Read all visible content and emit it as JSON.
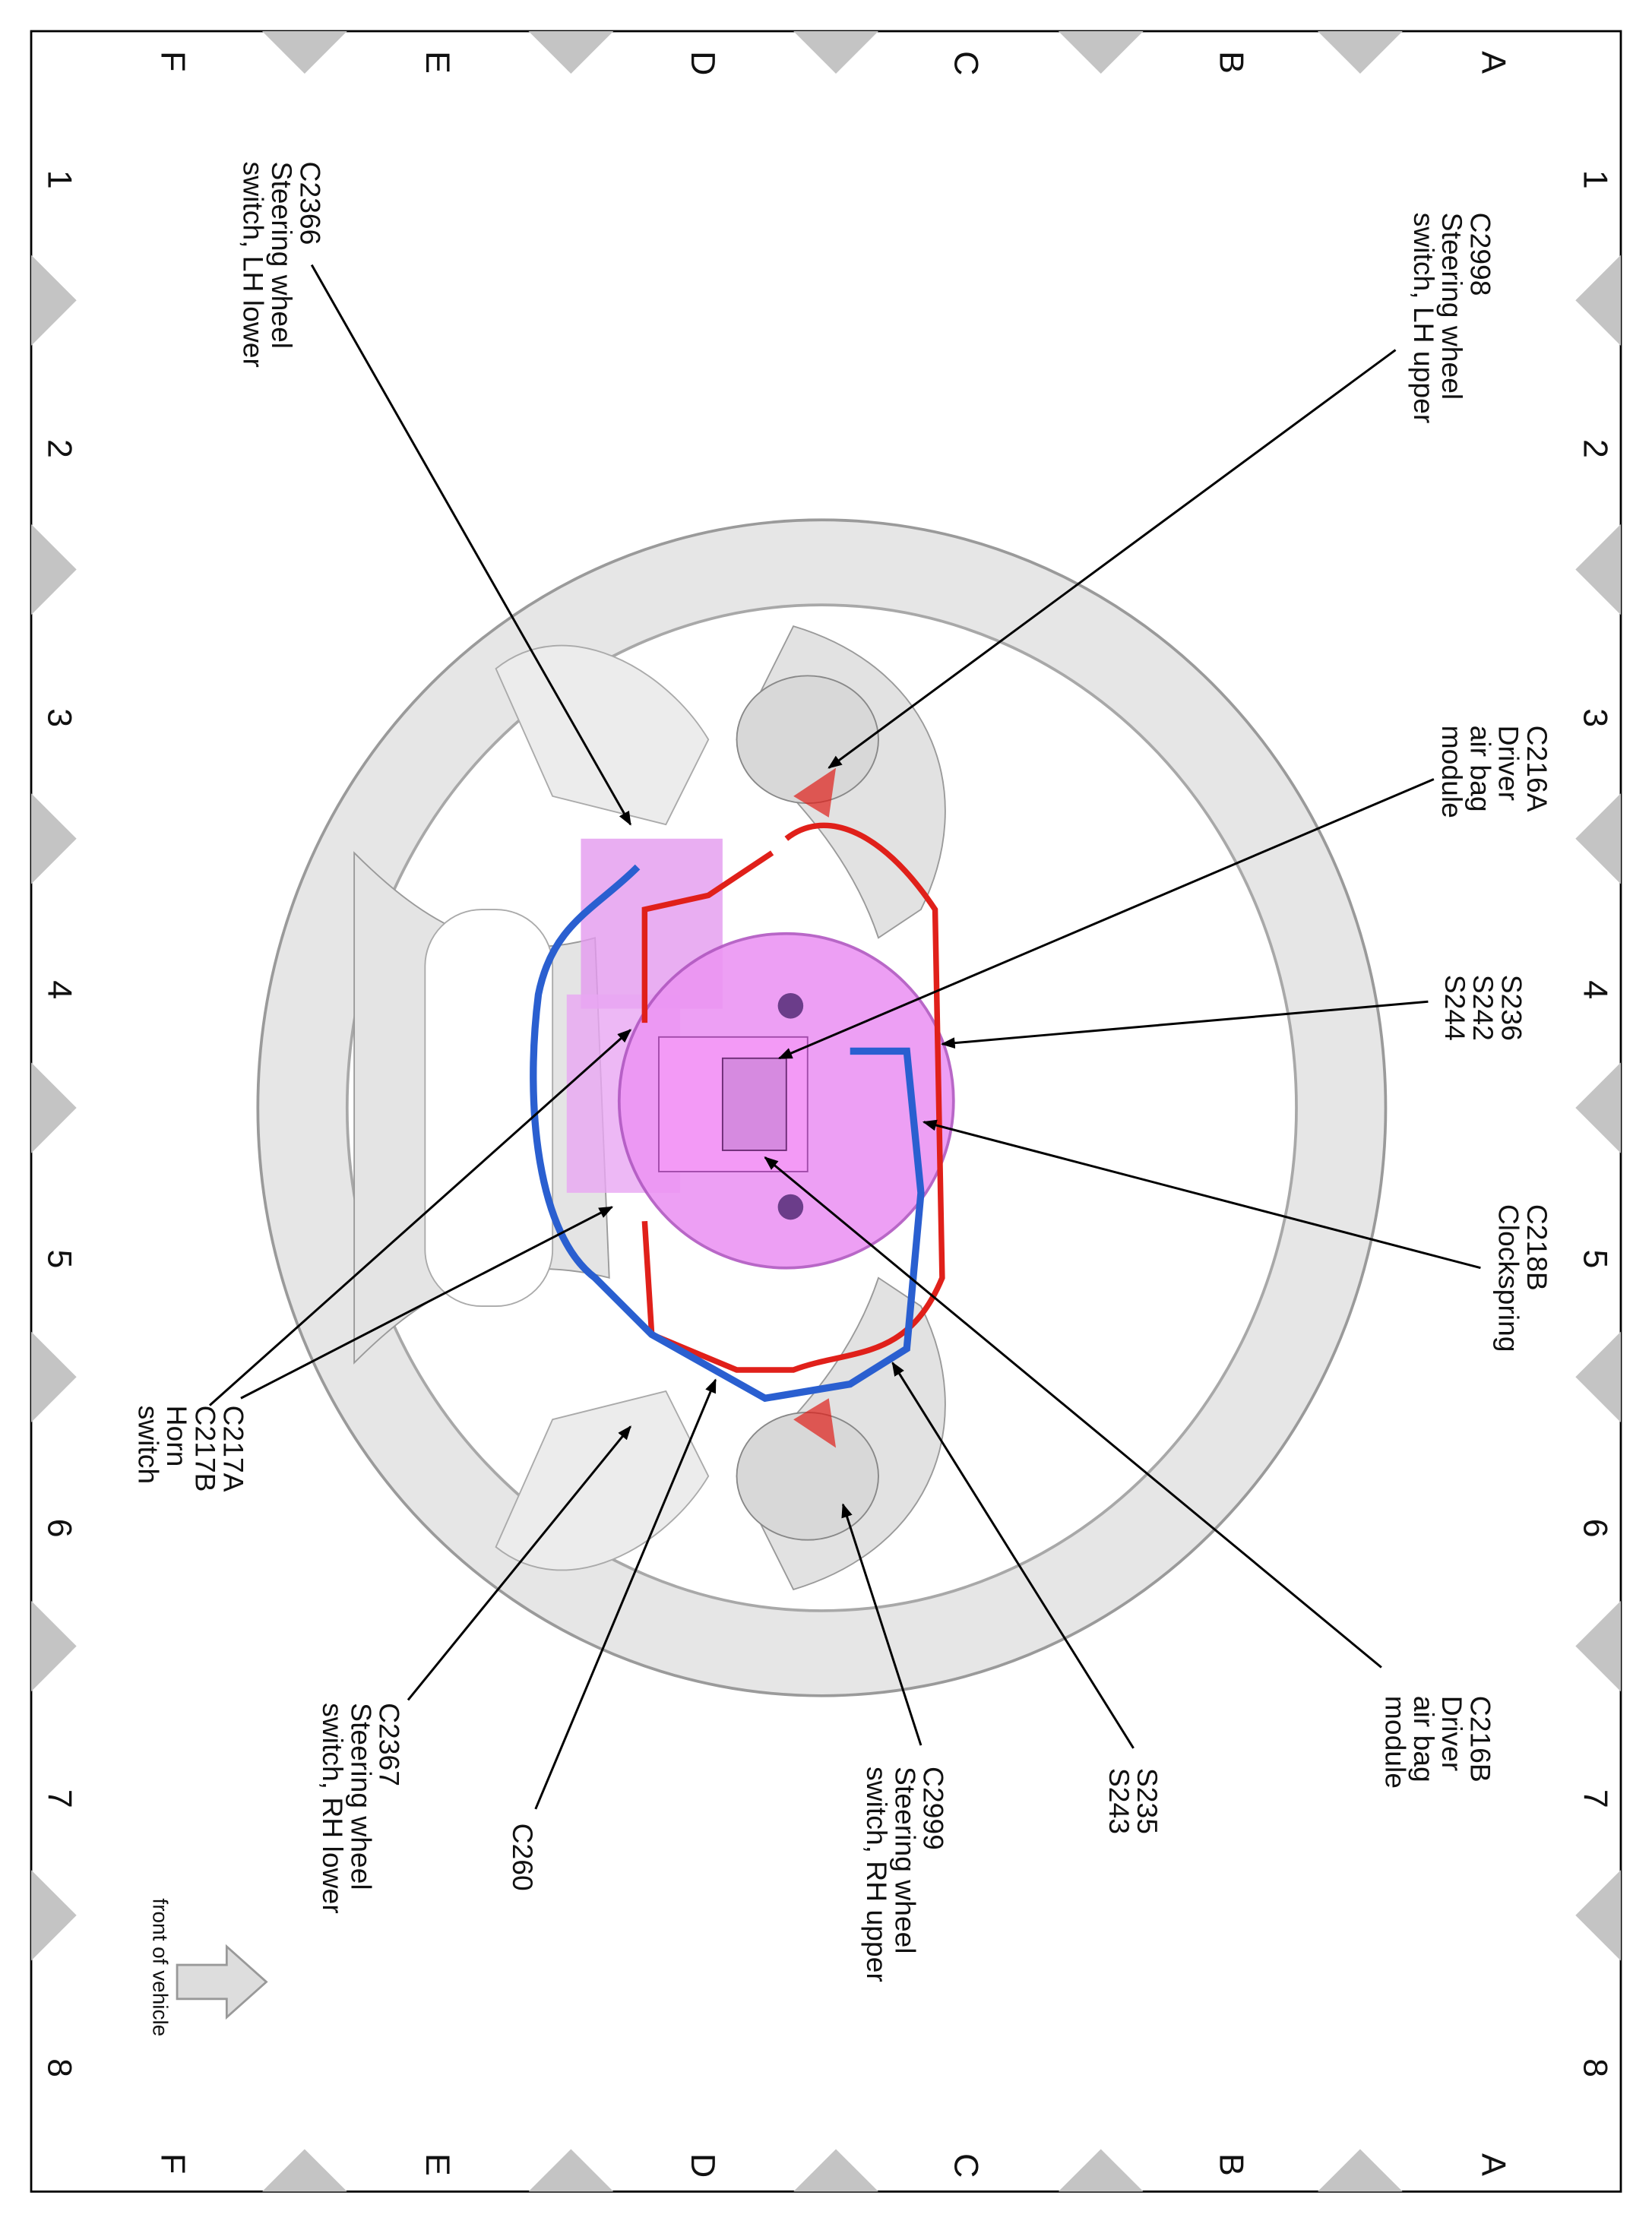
{
  "grid": {
    "rows": [
      "A",
      "B",
      "C",
      "D",
      "E",
      "F"
    ],
    "columns": [
      "1",
      "2",
      "3",
      "4",
      "5",
      "6",
      "7",
      "8"
    ]
  },
  "callouts": {
    "c2998": [
      "C2998",
      "Steering wheel",
      "switch, LH upper"
    ],
    "c216a": [
      "C216A",
      "Driver",
      "air bag",
      "module"
    ],
    "s236": [
      "S236",
      "S242",
      "S244"
    ],
    "c218b": [
      "C218B",
      "Clockspring"
    ],
    "c216b": [
      "C216B",
      "Driver",
      "air bag",
      "module"
    ],
    "s235": [
      "S235",
      "S243"
    ],
    "c2999": [
      "C2999",
      "Steering wheel",
      "switch, RH upper"
    ],
    "c260": [
      "C260"
    ],
    "c2367": [
      "C2367",
      "Steering wheel",
      "switch, RH lower"
    ],
    "c217": [
      "C217A",
      "C217B",
      "Horn",
      "switch"
    ],
    "c2366": [
      "C2366",
      "Steering wheel",
      "switch, LH lower"
    ]
  },
  "front_label": "front of vehicle",
  "colors": {
    "power_wire": "#e0201a",
    "signal_wire": "#2a5fd0",
    "clockspring": "#e98ef0"
  }
}
